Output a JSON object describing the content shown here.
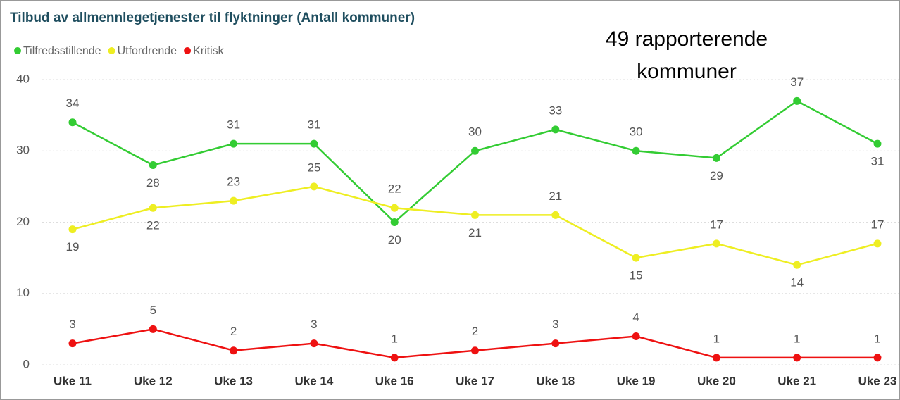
{
  "chart_data": {
    "type": "line",
    "title": "Tilbud av allmennlegetjenester til flyktninger (Antall kommuner)",
    "annotation": [
      "49 rapporterende",
      "kommuner"
    ],
    "categories": [
      "Uke 11",
      "Uke 12",
      "Uke 13",
      "Uke 14",
      "Uke 16",
      "Uke 17",
      "Uke 18",
      "Uke 19",
      "Uke 20",
      "Uke 21",
      "Uke 23"
    ],
    "series": [
      {
        "name": "Tilfredsstillende",
        "color": "#33cc33",
        "values": [
          34,
          28,
          31,
          31,
          20,
          30,
          33,
          30,
          29,
          37,
          31
        ]
      },
      {
        "name": "Utfordrende",
        "color": "#eeee22",
        "values": [
          19,
          22,
          23,
          25,
          22,
          21,
          21,
          15,
          17,
          14,
          17
        ]
      },
      {
        "name": "Kritisk",
        "color": "#ee1111",
        "values": [
          3,
          5,
          2,
          3,
          1,
          2,
          3,
          4,
          1,
          1,
          1
        ]
      }
    ],
    "ylim": [
      0,
      40
    ],
    "yticks": [
      0,
      10,
      20,
      30,
      40
    ],
    "grid": true,
    "legend": "top-left"
  }
}
